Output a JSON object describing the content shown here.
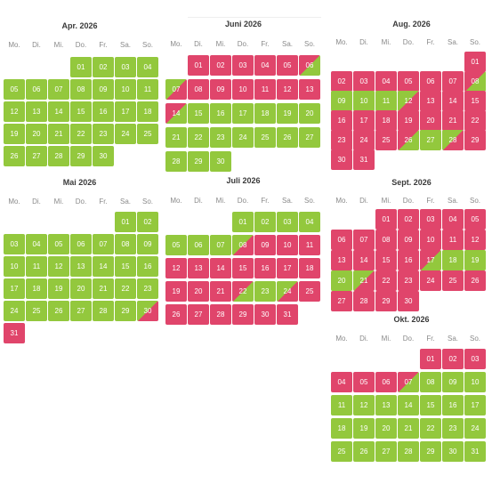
{
  "weekdays": [
    "Mo.",
    "Di.",
    "Mi.",
    "Do.",
    "Fr.",
    "Sa.",
    "So."
  ],
  "colors": {
    "available": "#93c83d",
    "booked": "#e0456b"
  },
  "months": [
    {
      "title": "Apr. 2026",
      "days": [
        {
          "n": "01",
          "s": "g"
        },
        {
          "n": "02",
          "s": "g"
        },
        {
          "n": "03",
          "s": "g"
        },
        {
          "n": "04",
          "s": "g"
        },
        {
          "n": "05",
          "s": "g"
        },
        {
          "n": "06",
          "s": "g"
        },
        {
          "n": "07",
          "s": "g"
        },
        {
          "n": "08",
          "s": "g"
        },
        {
          "n": "09",
          "s": "g"
        },
        {
          "n": "10",
          "s": "g"
        },
        {
          "n": "11",
          "s": "g"
        },
        {
          "n": "12",
          "s": "g"
        },
        {
          "n": "13",
          "s": "g"
        },
        {
          "n": "14",
          "s": "g"
        },
        {
          "n": "15",
          "s": "g"
        },
        {
          "n": "16",
          "s": "g"
        },
        {
          "n": "17",
          "s": "g"
        },
        {
          "n": "18",
          "s": "g"
        },
        {
          "n": "19",
          "s": "g"
        },
        {
          "n": "20",
          "s": "g"
        },
        {
          "n": "21",
          "s": "g"
        },
        {
          "n": "22",
          "s": "g"
        },
        {
          "n": "23",
          "s": "g"
        },
        {
          "n": "24",
          "s": "g"
        },
        {
          "n": "25",
          "s": "g"
        },
        {
          "n": "26",
          "s": "g"
        },
        {
          "n": "27",
          "s": "g"
        },
        {
          "n": "28",
          "s": "g"
        },
        {
          "n": "29",
          "s": "g"
        },
        {
          "n": "30",
          "s": "g"
        }
      ]
    },
    {
      "title": "Mai 2026",
      "days": [
        {
          "n": "01",
          "s": "g"
        },
        {
          "n": "02",
          "s": "g"
        },
        {
          "n": "03",
          "s": "g"
        },
        {
          "n": "04",
          "s": "g"
        },
        {
          "n": "05",
          "s": "g"
        },
        {
          "n": "06",
          "s": "g"
        },
        {
          "n": "07",
          "s": "g"
        },
        {
          "n": "08",
          "s": "g"
        },
        {
          "n": "09",
          "s": "g"
        },
        {
          "n": "10",
          "s": "g"
        },
        {
          "n": "11",
          "s": "g"
        },
        {
          "n": "12",
          "s": "g"
        },
        {
          "n": "13",
          "s": "g"
        },
        {
          "n": "14",
          "s": "g"
        },
        {
          "n": "15",
          "s": "g"
        },
        {
          "n": "16",
          "s": "g"
        },
        {
          "n": "17",
          "s": "g"
        },
        {
          "n": "18",
          "s": "g"
        },
        {
          "n": "19",
          "s": "g"
        },
        {
          "n": "20",
          "s": "g"
        },
        {
          "n": "21",
          "s": "g"
        },
        {
          "n": "22",
          "s": "g"
        },
        {
          "n": "23",
          "s": "g"
        },
        {
          "n": "24",
          "s": "g"
        },
        {
          "n": "25",
          "s": "g"
        },
        {
          "n": "26",
          "s": "g"
        },
        {
          "n": "27",
          "s": "g"
        },
        {
          "n": "28",
          "s": "g"
        },
        {
          "n": "29",
          "s": "g"
        },
        {
          "n": "30",
          "s": "gr"
        },
        {
          "n": "31",
          "s": "r"
        }
      ]
    },
    {
      "title": "Juni 2026",
      "days": [
        {
          "n": "01",
          "s": "r"
        },
        {
          "n": "02",
          "s": "r"
        },
        {
          "n": "03",
          "s": "r"
        },
        {
          "n": "04",
          "s": "r"
        },
        {
          "n": "05",
          "s": "r"
        },
        {
          "n": "06",
          "s": "rg"
        },
        {
          "n": "07",
          "s": "gr"
        },
        {
          "n": "08",
          "s": "r"
        },
        {
          "n": "09",
          "s": "r"
        },
        {
          "n": "10",
          "s": "r"
        },
        {
          "n": "11",
          "s": "r"
        },
        {
          "n": "12",
          "s": "r"
        },
        {
          "n": "13",
          "s": "r"
        },
        {
          "n": "14",
          "s": "rg"
        },
        {
          "n": "15",
          "s": "g"
        },
        {
          "n": "16",
          "s": "g"
        },
        {
          "n": "17",
          "s": "g"
        },
        {
          "n": "18",
          "s": "g"
        },
        {
          "n": "19",
          "s": "g"
        },
        {
          "n": "20",
          "s": "g"
        },
        {
          "n": "21",
          "s": "g"
        },
        {
          "n": "22",
          "s": "g"
        },
        {
          "n": "23",
          "s": "g"
        },
        {
          "n": "24",
          "s": "g"
        },
        {
          "n": "25",
          "s": "g"
        },
        {
          "n": "26",
          "s": "g"
        },
        {
          "n": "27",
          "s": "g"
        },
        {
          "n": "28",
          "s": "g"
        },
        {
          "n": "29",
          "s": "g"
        },
        {
          "n": "30",
          "s": "g"
        }
      ]
    },
    {
      "title": "Juli 2026",
      "days": [
        {
          "n": "01",
          "s": "g"
        },
        {
          "n": "02",
          "s": "g"
        },
        {
          "n": "03",
          "s": "g"
        },
        {
          "n": "04",
          "s": "g"
        },
        {
          "n": "05",
          "s": "g"
        },
        {
          "n": "06",
          "s": "g"
        },
        {
          "n": "07",
          "s": "g"
        },
        {
          "n": "08",
          "s": "gr"
        },
        {
          "n": "09",
          "s": "r"
        },
        {
          "n": "10",
          "s": "r"
        },
        {
          "n": "11",
          "s": "r"
        },
        {
          "n": "12",
          "s": "r"
        },
        {
          "n": "13",
          "s": "r"
        },
        {
          "n": "14",
          "s": "r"
        },
        {
          "n": "15",
          "s": "r"
        },
        {
          "n": "16",
          "s": "r"
        },
        {
          "n": "17",
          "s": "r"
        },
        {
          "n": "18",
          "s": "r"
        },
        {
          "n": "19",
          "s": "r"
        },
        {
          "n": "20",
          "s": "r"
        },
        {
          "n": "21",
          "s": "r"
        },
        {
          "n": "22",
          "s": "rg"
        },
        {
          "n": "23",
          "s": "g"
        },
        {
          "n": "24",
          "s": "gr"
        },
        {
          "n": "25",
          "s": "r"
        },
        {
          "n": "26",
          "s": "r"
        },
        {
          "n": "27",
          "s": "r"
        },
        {
          "n": "28",
          "s": "r"
        },
        {
          "n": "29",
          "s": "r"
        },
        {
          "n": "30",
          "s": "r"
        },
        {
          "n": "31",
          "s": "r"
        }
      ]
    },
    {
      "title": "Aug. 2026",
      "days": [
        {
          "n": "01",
          "s": "r"
        },
        {
          "n": "02",
          "s": "r"
        },
        {
          "n": "03",
          "s": "r"
        },
        {
          "n": "04",
          "s": "r"
        },
        {
          "n": "05",
          "s": "r"
        },
        {
          "n": "06",
          "s": "r"
        },
        {
          "n": "07",
          "s": "r"
        },
        {
          "n": "08",
          "s": "rg"
        },
        {
          "n": "09",
          "s": "g"
        },
        {
          "n": "10",
          "s": "g"
        },
        {
          "n": "11",
          "s": "g"
        },
        {
          "n": "12",
          "s": "gr"
        },
        {
          "n": "13",
          "s": "r"
        },
        {
          "n": "14",
          "s": "r"
        },
        {
          "n": "15",
          "s": "r"
        },
        {
          "n": "16",
          "s": "r"
        },
        {
          "n": "17",
          "s": "r"
        },
        {
          "n": "18",
          "s": "r"
        },
        {
          "n": "19",
          "s": "r"
        },
        {
          "n": "20",
          "s": "r"
        },
        {
          "n": "21",
          "s": "r"
        },
        {
          "n": "22",
          "s": "r"
        },
        {
          "n": "23",
          "s": "r"
        },
        {
          "n": "24",
          "s": "r"
        },
        {
          "n": "25",
          "s": "r"
        },
        {
          "n": "26",
          "s": "rg"
        },
        {
          "n": "27",
          "s": "g"
        },
        {
          "n": "28",
          "s": "gr"
        },
        {
          "n": "29",
          "s": "r"
        },
        {
          "n": "30",
          "s": "r"
        },
        {
          "n": "31",
          "s": "r"
        }
      ]
    },
    {
      "title": "Sept. 2026",
      "days": [
        {
          "n": "01",
          "s": "r"
        },
        {
          "n": "02",
          "s": "r"
        },
        {
          "n": "03",
          "s": "r"
        },
        {
          "n": "04",
          "s": "r"
        },
        {
          "n": "05",
          "s": "r"
        },
        {
          "n": "06",
          "s": "r"
        },
        {
          "n": "07",
          "s": "r"
        },
        {
          "n": "08",
          "s": "r"
        },
        {
          "n": "09",
          "s": "r"
        },
        {
          "n": "10",
          "s": "r"
        },
        {
          "n": "11",
          "s": "r"
        },
        {
          "n": "12",
          "s": "r"
        },
        {
          "n": "13",
          "s": "r"
        },
        {
          "n": "14",
          "s": "r"
        },
        {
          "n": "15",
          "s": "r"
        },
        {
          "n": "16",
          "s": "r"
        },
        {
          "n": "17",
          "s": "rg"
        },
        {
          "n": "18",
          "s": "g"
        },
        {
          "n": "19",
          "s": "g"
        },
        {
          "n": "20",
          "s": "g"
        },
        {
          "n": "21",
          "s": "gr"
        },
        {
          "n": "22",
          "s": "r"
        },
        {
          "n": "23",
          "s": "r"
        },
        {
          "n": "24",
          "s": "r"
        },
        {
          "n": "25",
          "s": "r"
        },
        {
          "n": "26",
          "s": "r"
        },
        {
          "n": "27",
          "s": "r"
        },
        {
          "n": "28",
          "s": "r"
        },
        {
          "n": "29",
          "s": "r"
        },
        {
          "n": "30",
          "s": "r"
        }
      ]
    },
    {
      "title": "Okt. 2026",
      "days": [
        {
          "n": "01",
          "s": "r"
        },
        {
          "n": "02",
          "s": "r"
        },
        {
          "n": "03",
          "s": "r"
        },
        {
          "n": "04",
          "s": "r"
        },
        {
          "n": "05",
          "s": "r"
        },
        {
          "n": "06",
          "s": "r"
        },
        {
          "n": "07",
          "s": "rg"
        },
        {
          "n": "08",
          "s": "g"
        },
        {
          "n": "09",
          "s": "g"
        },
        {
          "n": "10",
          "s": "g"
        },
        {
          "n": "11",
          "s": "g"
        },
        {
          "n": "12",
          "s": "g"
        },
        {
          "n": "13",
          "s": "g"
        },
        {
          "n": "14",
          "s": "g"
        },
        {
          "n": "15",
          "s": "g"
        },
        {
          "n": "16",
          "s": "g"
        },
        {
          "n": "17",
          "s": "g"
        },
        {
          "n": "18",
          "s": "g"
        },
        {
          "n": "19",
          "s": "g"
        },
        {
          "n": "20",
          "s": "g"
        },
        {
          "n": "21",
          "s": "g"
        },
        {
          "n": "22",
          "s": "g"
        },
        {
          "n": "23",
          "s": "g"
        },
        {
          "n": "24",
          "s": "g"
        },
        {
          "n": "25",
          "s": "g"
        },
        {
          "n": "26",
          "s": "g"
        },
        {
          "n": "27",
          "s": "g"
        },
        {
          "n": "28",
          "s": "g"
        },
        {
          "n": "29",
          "s": "g"
        },
        {
          "n": "30",
          "s": "g"
        },
        {
          "n": "31",
          "s": "g"
        }
      ]
    }
  ]
}
